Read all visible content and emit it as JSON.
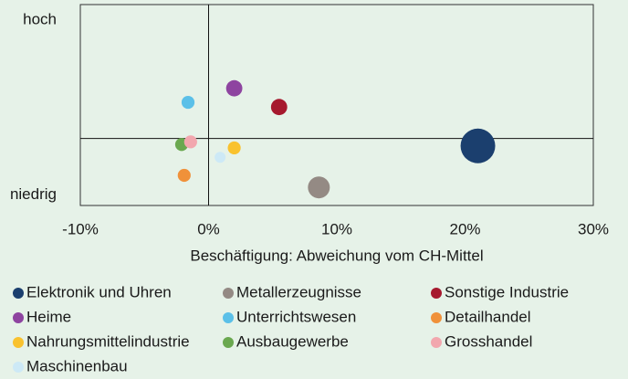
{
  "chart_data": {
    "type": "scatter",
    "xlabel": "Beschäftigung: Abweichung vom CH-Mittel",
    "xlim": [
      -10,
      30
    ],
    "xticks": [
      {
        "value": -10,
        "label": "-10%"
      },
      {
        "value": 0,
        "label": "0%"
      },
      {
        "value": 10,
        "label": "10%"
      },
      {
        "value": 20,
        "label": "20%"
      },
      {
        "value": 30,
        "label": "30%"
      }
    ],
    "ylim": [
      -1,
      2
    ],
    "yticks": [
      {
        "value": 1.77,
        "label": "hoch"
      },
      {
        "value": -0.84,
        "label": "niedrig"
      }
    ],
    "grid": false,
    "series": [
      {
        "name": "Elektronik und Uhren",
        "color": "#1b3f6e",
        "x": [
          21.0
        ],
        "values": [
          -0.11
        ],
        "sizes": [
          10
        ]
      },
      {
        "name": "Metallerzeugnisse",
        "color": "#948a84",
        "x": [
          8.6
        ],
        "values": [
          -0.73
        ],
        "sizes": [
          4
        ]
      },
      {
        "name": "Sonstige Industrie",
        "color": "#a6192e",
        "x": [
          5.5
        ],
        "values": [
          0.47
        ],
        "sizes": [
          2.2
        ]
      },
      {
        "name": "Heime",
        "color": "#8e44a0",
        "x": [
          2.0
        ],
        "values": [
          0.75
        ],
        "sizes": [
          2.2
        ]
      },
      {
        "name": "Unterrichtswesen",
        "color": "#5bc0e8",
        "x": [
          -1.6
        ],
        "values": [
          0.54
        ],
        "sizes": [
          1.4
        ]
      },
      {
        "name": "Detailhandel",
        "color": "#f0913a",
        "x": [
          -1.9
        ],
        "values": [
          -0.55
        ],
        "sizes": [
          1.4
        ]
      },
      {
        "name": "Nahrungsmittelindustrie",
        "color": "#f9c22e",
        "x": [
          2.0
        ],
        "values": [
          -0.14
        ],
        "sizes": [
          1.4
        ]
      },
      {
        "name": "Ausbaugewerbe",
        "color": "#6aa84f",
        "x": [
          -2.1
        ],
        "values": [
          -0.09
        ],
        "sizes": [
          1.4
        ]
      },
      {
        "name": "Grosshandel",
        "color": "#f2a7ae",
        "x": [
          -1.4
        ],
        "values": [
          -0.05
        ],
        "sizes": [
          1.4
        ]
      },
      {
        "name": "Maschinenbau",
        "color": "#cde9f6",
        "x": [
          0.9
        ],
        "values": [
          -0.28
        ],
        "sizes": [
          1
        ]
      }
    ]
  }
}
